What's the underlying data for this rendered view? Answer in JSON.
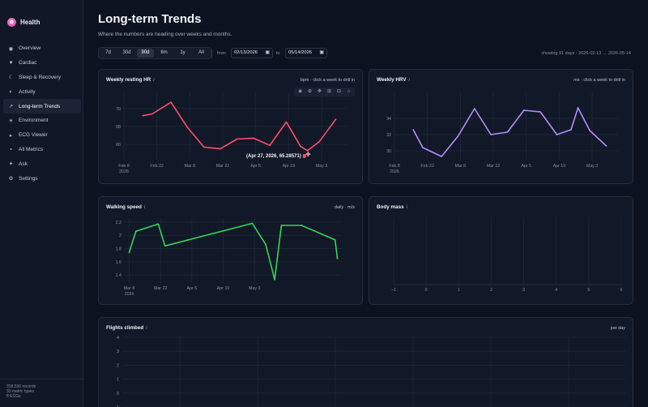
{
  "app": {
    "name": "Health",
    "logo_icon": "flower-icon"
  },
  "sidebar": {
    "items": [
      {
        "label": "Overview",
        "icon": "◉",
        "active": false
      },
      {
        "label": "Cardiac",
        "icon": "♥",
        "active": false
      },
      {
        "label": "Sleep & Recovery",
        "icon": "☾",
        "active": false
      },
      {
        "label": "Activity",
        "icon": "◐",
        "active": false
      },
      {
        "label": "Long-term Trends",
        "icon": "↗",
        "active": true
      },
      {
        "label": "Environment",
        "icon": "☀",
        "active": false
      },
      {
        "label": "ECG Viewer",
        "icon": "▸",
        "active": false
      },
      {
        "label": "All Metrics",
        "icon": "▪",
        "active": false
      },
      {
        "label": "Ask",
        "icon": "✦",
        "active": false
      },
      {
        "label": "Settings",
        "icon": "⚙",
        "active": false
      }
    ],
    "footer": [
      "318,536 records",
      "33 metric types",
      "8 ECGs"
    ]
  },
  "page": {
    "title": "Long-term Trends",
    "subtitle": "Where the numbers are heading over weeks and months."
  },
  "controls": {
    "ranges": [
      "7d",
      "30d",
      "90d",
      "6m",
      "1y",
      "All"
    ],
    "active_range": "90d",
    "from_label": "from",
    "from_value": "02/13/2026",
    "to_label": "to",
    "to_value": "05/14/2026",
    "showing": "showing 91 days · 2026-02-13 → 2026-05-14"
  },
  "cards": {
    "hr": {
      "title": "Weekly resting HR",
      "info": "i",
      "right": "bpm · click a week to drill in"
    },
    "hrv": {
      "title": "Weekly HRV",
      "info": "i",
      "right": "ms · click a week to drill in"
    },
    "walk": {
      "title": "Walking speed",
      "info": "i",
      "right": "daily · m/s"
    },
    "mass": {
      "title": "Body mass",
      "info": "i",
      "right": ""
    },
    "flights": {
      "title": "Flights climbed",
      "info": "i",
      "right": "per day"
    }
  },
  "tooltip": {
    "text": "(Apr 27, 2026, 65.28571)"
  },
  "chart_data": [
    {
      "name": "Weekly resting HR",
      "type": "line",
      "color": "#ff4d6d",
      "x": [
        "2026-02-16",
        "2026-02-20",
        "2026-02-28",
        "2026-03-07",
        "2026-03-14",
        "2026-03-21",
        "2026-03-28",
        "2026-04-04",
        "2026-04-11",
        "2026-04-18",
        "2026-04-24",
        "2026-04-27",
        "2026-05-02",
        "2026-05-09"
      ],
      "y": [
        69.2,
        69.4,
        70.7,
        67.9,
        65.7,
        65.5,
        66.6,
        66.7,
        65.9,
        68.5,
        65.8,
        65.3,
        66.3,
        68.8
      ],
      "ylim": [
        64.2,
        71.8
      ],
      "yticks": [
        66,
        68,
        70
      ],
      "xticks": [
        "Feb 8\n2026",
        "Feb 22",
        "Mar 8",
        "Mar 22",
        "Apr 5",
        "Apr 19",
        "May 3"
      ],
      "xrange": [
        "2026-02-08",
        "2026-05-14"
      ]
    },
    {
      "name": "Weekly HRV",
      "type": "line",
      "color": "#b68cff",
      "x": [
        "2026-02-16",
        "2026-02-20",
        "2026-02-28",
        "2026-03-07",
        "2026-03-14",
        "2026-03-21",
        "2026-03-28",
        "2026-04-04",
        "2026-04-11",
        "2026-04-18",
        "2026-04-24",
        "2026-04-27",
        "2026-05-02",
        "2026-05-09"
      ],
      "y": [
        32.6,
        30.4,
        29.3,
        31.8,
        35.2,
        32.0,
        32.3,
        35.0,
        34.8,
        32.0,
        32.6,
        35.3,
        32.5,
        30.6
      ],
      "ylim": [
        28.8,
        37.2
      ],
      "yticks": [
        30,
        32,
        34
      ],
      "xticks": [
        "Feb 8\n2026",
        "Feb 22",
        "Mar 8",
        "Mar 22",
        "Apr 5",
        "Apr 19",
        "May 3"
      ],
      "xrange": [
        "2026-02-08",
        "2026-05-14"
      ]
    },
    {
      "name": "Walking speed",
      "type": "line",
      "color": "#35d65a",
      "x": [
        "2026-02-08",
        "2026-02-11",
        "2026-02-21",
        "2026-02-24",
        "2026-04-04",
        "2026-04-10",
        "2026-04-14",
        "2026-04-17",
        "2026-04-26",
        "2026-05-11",
        "2026-05-12"
      ],
      "y": [
        1.74,
        2.06,
        2.17,
        1.84,
        2.18,
        1.86,
        1.33,
        2.15,
        2.15,
        1.93,
        1.65
      ],
      "ylim": [
        1.28,
        2.26
      ],
      "yticks": [
        1.4,
        1.6,
        1.8,
        2,
        2.2
      ],
      "xticks": [
        "Mar 8\n2026",
        "Mar 22",
        "Apr 5",
        "Apr 19",
        "May 3"
      ]
    },
    {
      "name": "Body mass",
      "type": "line",
      "color": "#6b7a99",
      "x": [],
      "y": [],
      "xlim": [
        -1,
        6
      ],
      "xticks": [
        "−1",
        "0",
        "1",
        "2",
        "3",
        "4",
        "5",
        "6"
      ]
    },
    {
      "name": "Flights climbed",
      "type": "line",
      "color": "#6b7a99",
      "x": [],
      "y": [],
      "ylim": [
        -1,
        4
      ],
      "yticks": [
        "4",
        "3",
        "2",
        "1",
        "0",
        "−1"
      ]
    }
  ]
}
